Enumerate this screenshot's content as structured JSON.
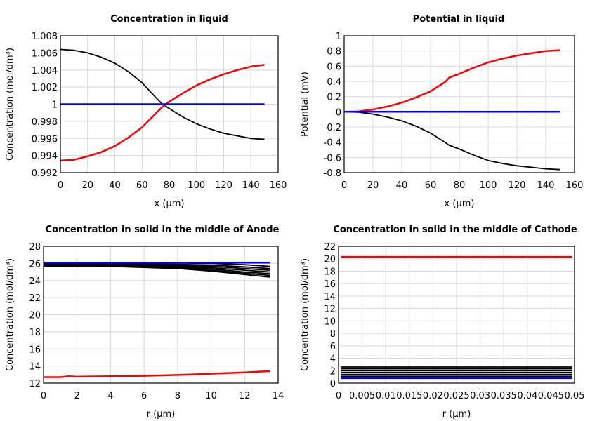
{
  "chart_data": [
    {
      "type": "line",
      "title": "Concentration in liquid",
      "xlabel": "x (µm)",
      "ylabel": "Concentration (mol/dm³)",
      "xlim": [
        0,
        160
      ],
      "ylim": [
        0.992,
        1.008
      ],
      "xticks": [
        "0",
        "20",
        "40",
        "60",
        "80",
        "100",
        "120",
        "140",
        "160"
      ],
      "yticks": [
        "0.992",
        "0.994",
        "0.996",
        "0.998",
        "1",
        "1.002",
        "1.004",
        "1.006",
        "1.008"
      ],
      "grid": true,
      "series": [
        {
          "color": "#000000",
          "x": [
            0,
            10,
            20,
            30,
            40,
            50,
            60,
            70,
            75,
            80,
            90,
            100,
            110,
            120,
            130,
            140,
            150
          ],
          "y": [
            1.0064,
            1.0063,
            1.006,
            1.0055,
            1.0048,
            1.0038,
            1.0025,
            1.0008,
            1.0,
            0.9995,
            0.9985,
            0.9977,
            0.9971,
            0.9966,
            0.9963,
            0.996,
            0.9959
          ]
        },
        {
          "color": "#ff0000",
          "x": [
            0,
            10,
            20,
            30,
            40,
            50,
            60,
            70,
            75,
            80,
            90,
            100,
            110,
            120,
            130,
            140,
            150
          ],
          "y": [
            0.9934,
            0.9935,
            0.9939,
            0.9944,
            0.9951,
            0.9961,
            0.9973,
            0.9989,
            0.9997,
            1.0003,
            1.0013,
            1.0022,
            1.0029,
            1.0035,
            1.004,
            1.0044,
            1.0046
          ]
        },
        {
          "color": "#0000ff",
          "x": [
            0,
            150
          ],
          "y": [
            1.0,
            1.0
          ]
        }
      ]
    },
    {
      "type": "line",
      "title": "Potential in liquid",
      "xlabel": "x (µm)",
      "ylabel": "Potential (mV)",
      "xlim": [
        0,
        160
      ],
      "ylim": [
        -0.8,
        1
      ],
      "xticks": [
        "0",
        "20",
        "40",
        "60",
        "80",
        "100",
        "120",
        "140",
        "160"
      ],
      "yticks": [
        "-0.8",
        "-0.6",
        "-0.4",
        "-0.2",
        "0",
        "0.2",
        "0.4",
        "0.6",
        "0.8",
        "1"
      ],
      "grid": true,
      "series": [
        {
          "color": "#ff0000",
          "x": [
            0,
            10,
            20,
            30,
            40,
            50,
            60,
            70,
            73,
            80,
            90,
            100,
            110,
            120,
            130,
            140,
            150
          ],
          "y": [
            0,
            0.005,
            0.03,
            0.07,
            0.12,
            0.19,
            0.27,
            0.39,
            0.45,
            0.5,
            0.58,
            0.65,
            0.7,
            0.74,
            0.77,
            0.8,
            0.81
          ]
        },
        {
          "color": "#000000",
          "x": [
            0,
            10,
            20,
            30,
            40,
            50,
            60,
            70,
            73,
            80,
            90,
            100,
            110,
            120,
            130,
            140,
            150
          ],
          "y": [
            0,
            -0.005,
            -0.03,
            -0.07,
            -0.12,
            -0.19,
            -0.28,
            -0.4,
            -0.44,
            -0.49,
            -0.57,
            -0.64,
            -0.68,
            -0.71,
            -0.73,
            -0.75,
            -0.76
          ]
        },
        {
          "color": "#0000ff",
          "x": [
            0,
            150
          ],
          "y": [
            0,
            0
          ]
        }
      ]
    },
    {
      "type": "line",
      "title": "Concentration in solid in the middle of Anode",
      "xlabel": "r (µm)",
      "ylabel": "Concentration (mol/dm³)",
      "xlim": [
        0,
        14
      ],
      "ylim": [
        12,
        28
      ],
      "xticks": [
        "0",
        "2",
        "4",
        "6",
        "8",
        "10",
        "12",
        "14"
      ],
      "yticks": [
        "12",
        "14",
        "16",
        "18",
        "20",
        "22",
        "24",
        "26",
        "28"
      ],
      "grid": true,
      "series": [
        {
          "color": "#000000",
          "x": [
            0,
            4,
            8,
            10,
            12,
            13.5
          ],
          "y": [
            26.05,
            26.05,
            26.05,
            26.0,
            25.85,
            25.65
          ]
        },
        {
          "color": "#000000",
          "x": [
            0,
            4,
            8,
            10,
            12,
            13.5
          ],
          "y": [
            26.0,
            25.98,
            25.9,
            25.8,
            25.6,
            25.4
          ]
        },
        {
          "color": "#000000",
          "x": [
            0,
            4,
            8,
            10,
            12,
            13.5
          ],
          "y": [
            25.95,
            25.92,
            25.8,
            25.65,
            25.4,
            25.2
          ]
        },
        {
          "color": "#000000",
          "x": [
            0,
            4,
            8,
            10,
            12,
            13.5
          ],
          "y": [
            25.9,
            25.85,
            25.7,
            25.5,
            25.2,
            25.0
          ]
        },
        {
          "color": "#000000",
          "x": [
            0,
            4,
            8,
            10,
            12,
            13.5
          ],
          "y": [
            25.85,
            25.8,
            25.6,
            25.35,
            25.0,
            24.8
          ]
        },
        {
          "color": "#000000",
          "x": [
            0,
            4,
            8,
            10,
            12,
            13.5
          ],
          "y": [
            25.8,
            25.72,
            25.5,
            25.2,
            24.85,
            24.6
          ]
        },
        {
          "color": "#000000",
          "x": [
            0,
            4,
            8,
            10,
            12,
            13.5
          ],
          "y": [
            25.7,
            25.65,
            25.4,
            25.1,
            24.7,
            24.4
          ]
        },
        {
          "color": "#0000ff",
          "x": [
            0,
            13.5
          ],
          "y": [
            26.1,
            26.1
          ]
        },
        {
          "color": "#ff0000",
          "x": [
            0,
            1,
            1.5,
            2,
            4,
            6,
            8,
            10,
            12,
            13.5
          ],
          "y": [
            12.7,
            12.7,
            12.8,
            12.75,
            12.8,
            12.85,
            12.95,
            13.1,
            13.25,
            13.4
          ]
        }
      ]
    },
    {
      "type": "line",
      "title": "Concentration in solid in the middle of Cathode",
      "xlabel": "r (µm)",
      "ylabel": "Concentration (mol/dm³)",
      "xlim": [
        0,
        0.05
      ],
      "ylim": [
        0,
        22
      ],
      "xticks": [
        "0",
        "0.005",
        "0.01",
        "0.015",
        "0.02",
        "0.025",
        "0.03",
        "0.035",
        "0.04",
        "0.045",
        "0.05"
      ],
      "yticks": [
        "0",
        "2",
        "4",
        "6",
        "8",
        "10",
        "12",
        "14",
        "16",
        "18",
        "20",
        "22"
      ],
      "grid": true,
      "series": [
        {
          "color": "#000000",
          "x": [
            0.0005,
            0.0495
          ],
          "y": [
            1.1,
            1.1
          ]
        },
        {
          "color": "#000000",
          "x": [
            0.0005,
            0.0495
          ],
          "y": [
            1.4,
            1.4
          ]
        },
        {
          "color": "#000000",
          "x": [
            0.0005,
            0.0495
          ],
          "y": [
            1.7,
            1.7
          ]
        },
        {
          "color": "#000000",
          "x": [
            0.0005,
            0.0495
          ],
          "y": [
            2.0,
            2.0
          ]
        },
        {
          "color": "#000000",
          "x": [
            0.0005,
            0.0495
          ],
          "y": [
            2.3,
            2.3
          ]
        },
        {
          "color": "#000000",
          "x": [
            0.0005,
            0.0495
          ],
          "y": [
            2.6,
            2.6
          ]
        },
        {
          "color": "#0000ff",
          "x": [
            0.0005,
            0.0495
          ],
          "y": [
            0.8,
            0.8
          ]
        },
        {
          "color": "#ff0000",
          "x": [
            0.0005,
            0.0495
          ],
          "y": [
            20.3,
            20.3
          ]
        }
      ]
    }
  ]
}
